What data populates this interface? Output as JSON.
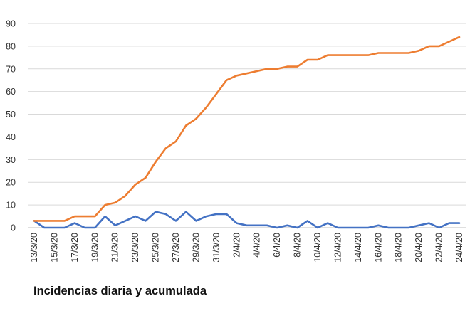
{
  "caption": "Incidencias diaria y acumulada",
  "chart_data": {
    "type": "line",
    "title": "",
    "xlabel": "",
    "ylabel": "",
    "ylim": [
      0,
      90
    ],
    "yticks": [
      0,
      10,
      20,
      30,
      40,
      50,
      60,
      70,
      80,
      90
    ],
    "grid": "horizontal",
    "legend": "none",
    "categories": [
      "13/3/20",
      "14/3/20",
      "15/3/20",
      "16/3/20",
      "17/3/20",
      "18/3/20",
      "19/3/20",
      "20/3/20",
      "21/3/20",
      "22/3/20",
      "23/3/20",
      "24/3/20",
      "25/3/20",
      "26/3/20",
      "27/3/20",
      "28/3/20",
      "29/3/20",
      "30/3/20",
      "31/3/20",
      "1/4/20",
      "2/4/20",
      "3/4/20",
      "4/4/20",
      "5/4/20",
      "6/4/20",
      "7/4/20",
      "8/4/20",
      "9/4/20",
      "10/4/20",
      "11/4/20",
      "12/4/20",
      "13/4/20",
      "14/4/20",
      "15/4/20",
      "16/4/20",
      "17/4/20",
      "18/4/20",
      "19/4/20",
      "20/4/20",
      "21/4/20",
      "22/4/20",
      "23/4/20",
      "24/4/20"
    ],
    "tick_labels": [
      "13/3/20",
      "15/3/20",
      "17/3/20",
      "19/3/20",
      "21/3/20",
      "23/3/20",
      "25/3/20",
      "27/3/20",
      "29/3/20",
      "31/3/20",
      "2/4/20",
      "4/4/20",
      "6/4/20",
      "8/4/20",
      "10/4/20",
      "12/4/20",
      "14/4/20",
      "16/4/20",
      "18/4/20",
      "20/4/20",
      "22/4/20",
      "24/4/20"
    ],
    "series": [
      {
        "color": "#4472c4",
        "values": [
          3,
          0,
          0,
          0,
          2,
          0,
          0,
          5,
          1,
          3,
          5,
          3,
          7,
          6,
          3,
          7,
          3,
          5,
          6,
          6,
          2,
          1,
          1,
          1,
          0,
          1,
          0,
          3,
          0,
          2,
          0,
          0,
          0,
          0,
          1,
          0,
          0,
          0,
          1,
          2,
          0,
          2,
          2
        ]
      },
      {
        "color": "#ed7d31",
        "values": [
          3,
          3,
          3,
          3,
          5,
          5,
          5,
          10,
          11,
          14,
          19,
          22,
          29,
          35,
          38,
          45,
          48,
          53,
          59,
          65,
          67,
          68,
          69,
          70,
          70,
          71,
          71,
          74,
          74,
          76,
          76,
          76,
          76,
          76,
          77,
          77,
          77,
          77,
          78,
          80,
          80,
          82,
          84
        ]
      }
    ]
  }
}
